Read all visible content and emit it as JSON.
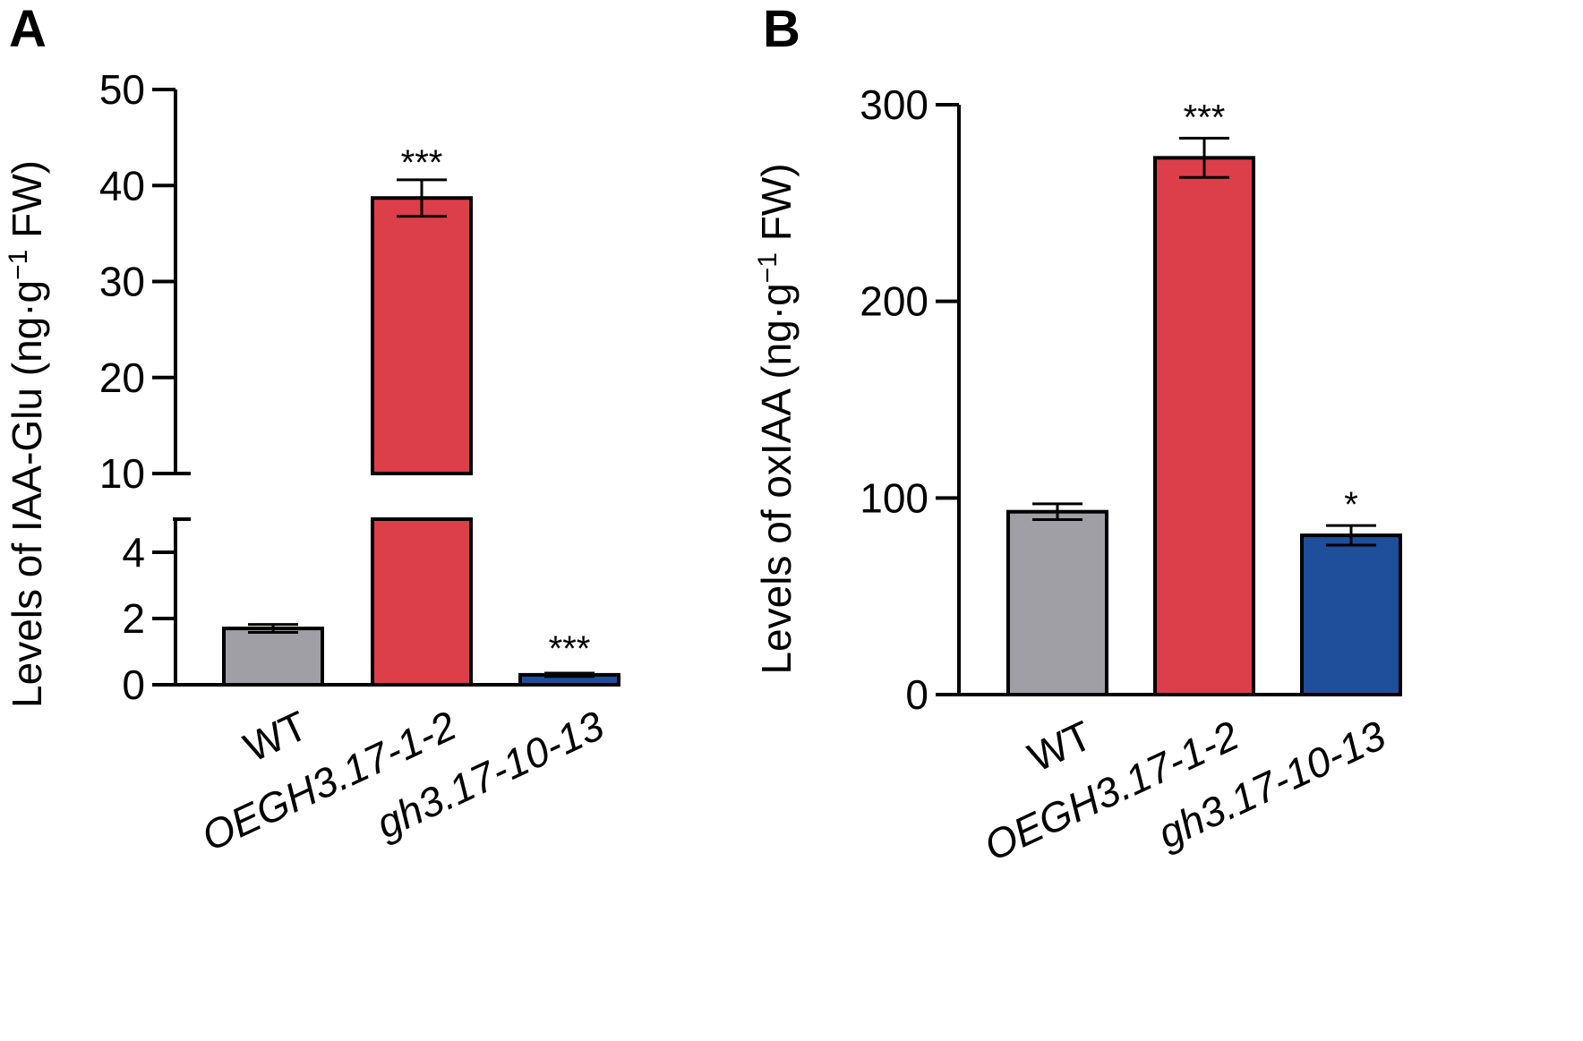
{
  "chart_data": [
    {
      "panel": "A",
      "type": "bar",
      "ylabel_prefix": "Levels of IAA-Glu (ng·g",
      "ylabel_sup": "−1",
      "ylabel_suffix": " FW)",
      "categories": [
        "WT",
        "OEGH3.17-1-2",
        "gh3.17-10-13"
      ],
      "category_italic": [
        false,
        true,
        true
      ],
      "values": [
        1.7,
        38.7,
        0.3
      ],
      "errors": [
        0.12,
        1.9,
        0.05
      ],
      "significance": [
        "",
        "***",
        "***"
      ],
      "bar_colors": [
        "#a09fa6",
        "#dc3e4a",
        "#1f4e9b"
      ],
      "axis_break": [
        5,
        10
      ],
      "ylim_lower": [
        0,
        5
      ],
      "ylim_upper": [
        10,
        50
      ],
      "yticks_lower": [
        "0",
        "2",
        "4"
      ],
      "yticks_upper": [
        "10",
        "20",
        "30",
        "40",
        "50"
      ]
    },
    {
      "panel": "B",
      "type": "bar",
      "ylabel_prefix": "Levels of oxIAA (ng·g",
      "ylabel_sup": "−1",
      "ylabel_suffix": " FW)",
      "categories": [
        "WT",
        "OEGH3.17-1-2",
        "gh3.17-10-13"
      ],
      "category_italic": [
        false,
        true,
        true
      ],
      "values": [
        93,
        273,
        81
      ],
      "errors": [
        4,
        10,
        5
      ],
      "significance": [
        "",
        "***",
        "*"
      ],
      "bar_colors": [
        "#a09fa6",
        "#dc3e4a",
        "#1f4e9b"
      ],
      "ylim": [
        0,
        300
      ],
      "yticks": [
        "0",
        "100",
        "200",
        "300"
      ]
    }
  ]
}
